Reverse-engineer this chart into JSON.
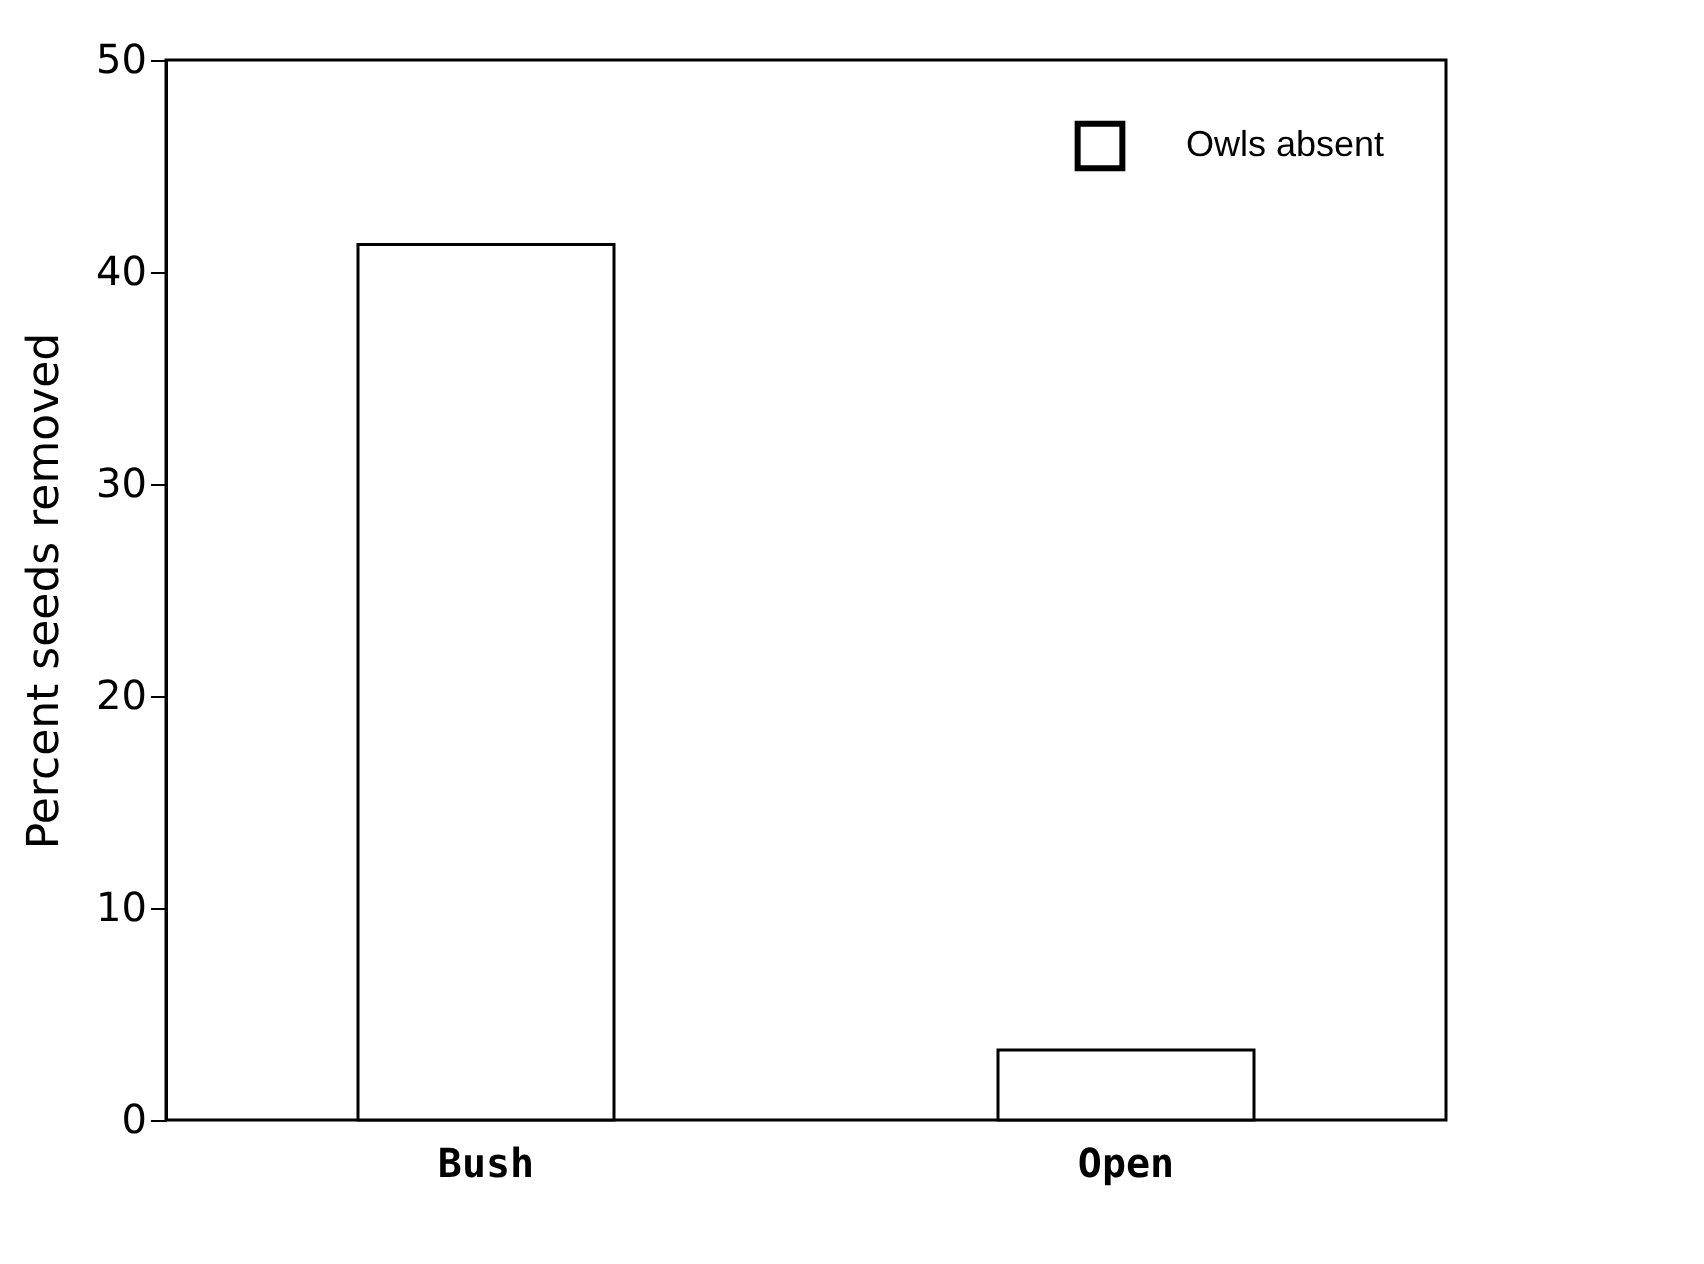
{
  "chart_data": {
    "type": "bar",
    "ylabel": "Percent seeds removed",
    "categories": [
      "Bush",
      "Open"
    ],
    "series": [
      {
        "name": "Owls absent",
        "color": "#ffffff",
        "values": [
          41.3,
          3.3
        ]
      }
    ],
    "ylim": [
      0,
      50
    ],
    "yticks": [
      0,
      10,
      20,
      30,
      40,
      50
    ],
    "grid": false,
    "legend": "top right"
  }
}
